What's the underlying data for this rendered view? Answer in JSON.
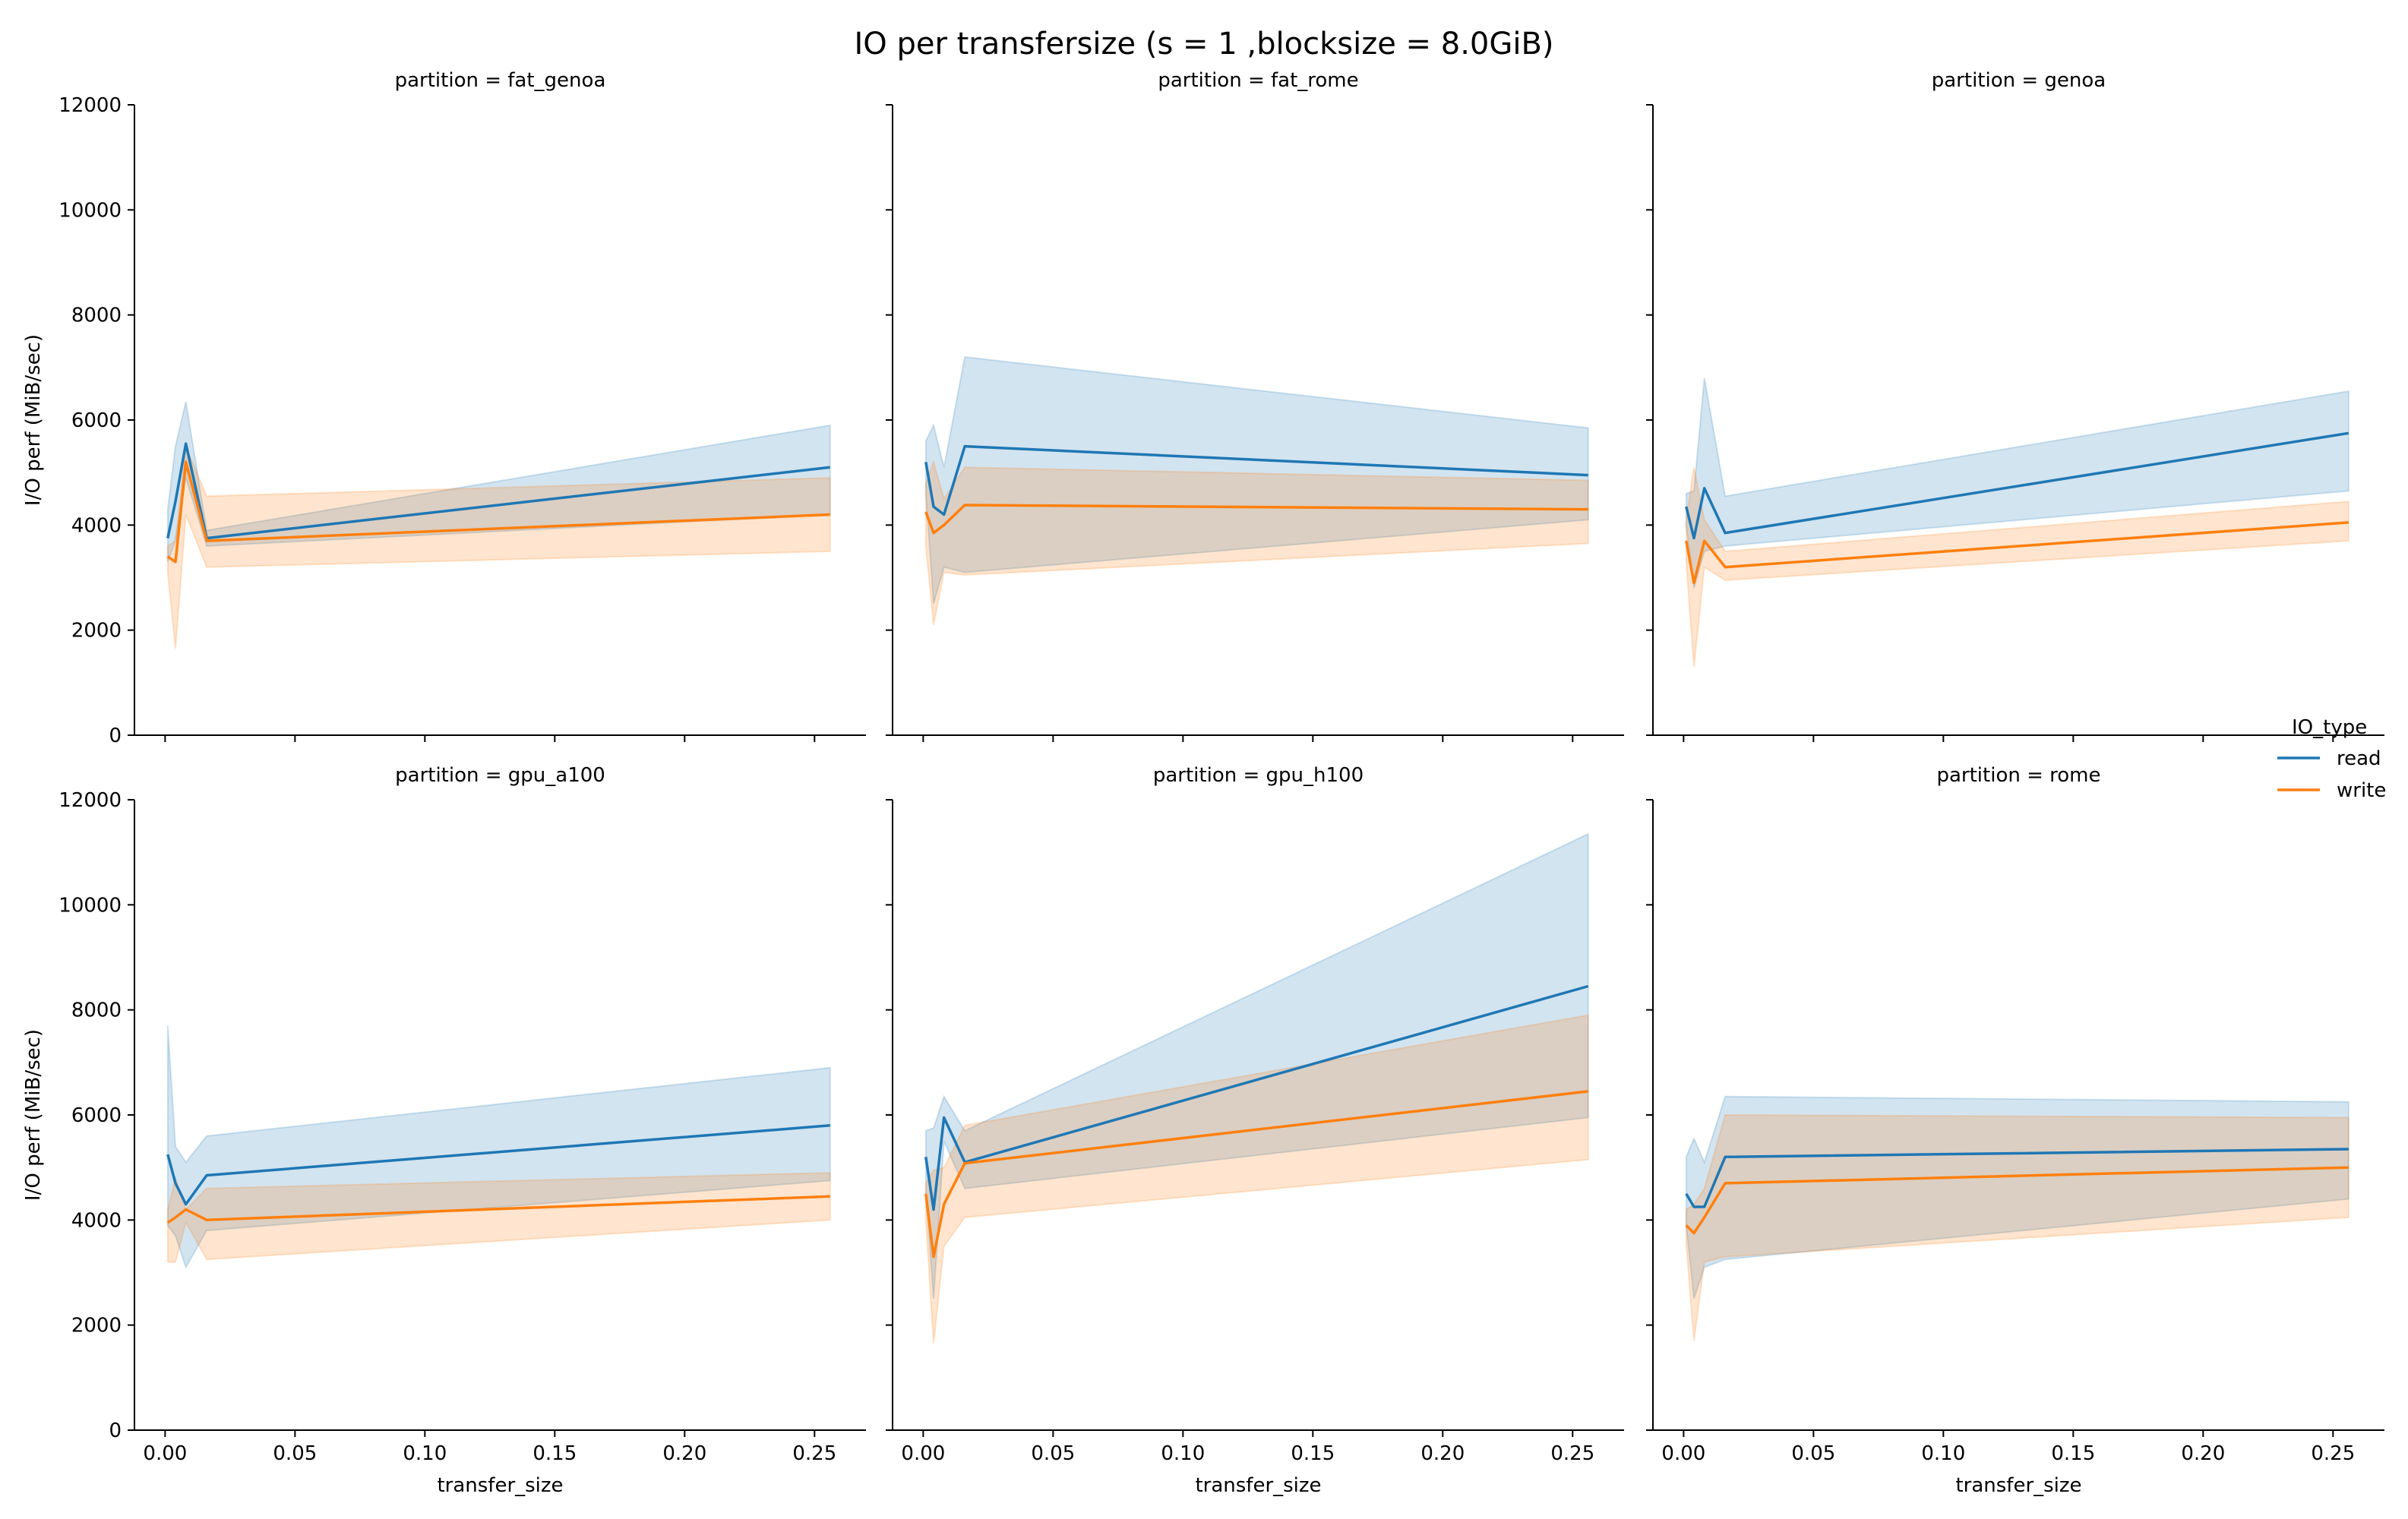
{
  "chart_data": {
    "type": "line",
    "title": "IO per transfersize (s = 1 ,blocksize = 8.0GiB)",
    "xlabel": "transfer_size",
    "ylabel": "I/O perf (MiB/sec)",
    "xlim": [
      -0.0118,
      0.2698
    ],
    "ylim": [
      0,
      12000
    ],
    "x_ticks": [
      0.0,
      0.05,
      0.1,
      0.15,
      0.2,
      0.25
    ],
    "x_tick_labels": [
      "0.00",
      "0.05",
      "0.10",
      "0.15",
      "0.20",
      "0.25"
    ],
    "y_ticks": [
      0,
      2000,
      4000,
      6000,
      8000,
      10000,
      12000
    ],
    "y_tick_labels": [
      "0",
      "2000",
      "4000",
      "6000",
      "8000",
      "10000",
      "12000"
    ],
    "x": [
      0.001,
      0.004,
      0.008,
      0.016,
      0.256
    ],
    "legend": {
      "title": "IO_type",
      "position": "right",
      "entries": [
        {
          "name": "read",
          "color": "#1f77b4"
        },
        {
          "name": "write",
          "color": "#ff7f0e"
        }
      ]
    },
    "panels": [
      {
        "title": "partition = fat_genoa",
        "series": [
          {
            "name": "read",
            "values": [
              3750,
              4450,
              5550,
              3750,
              5100
            ],
            "lower": [
              3300,
              3700,
              4900,
              3600,
              4200
            ],
            "upper": [
              4300,
              5500,
              6350,
              3900,
              5900
            ]
          },
          {
            "name": "write",
            "values": [
              3400,
              3300,
              5200,
              3700,
              4200
            ],
            "lower": [
              3100,
              1650,
              4200,
              3200,
              3500
            ],
            "upper": [
              3600,
              3700,
              5500,
              4550,
              4900
            ]
          }
        ]
      },
      {
        "title": "partition = fat_rome",
        "series": [
          {
            "name": "read",
            "values": [
              5200,
              4350,
              4200,
              5500,
              4950
            ],
            "lower": [
              4600,
              2500,
              3200,
              3100,
              4100
            ],
            "upper": [
              5600,
              5900,
              5100,
              7200,
              5850
            ]
          },
          {
            "name": "write",
            "values": [
              4250,
              3850,
              4000,
              4380,
              4300
            ],
            "lower": [
              3600,
              2100,
              3100,
              3050,
              3650
            ],
            "upper": [
              4800,
              5200,
              4500,
              5100,
              4850
            ]
          }
        ]
      },
      {
        "title": "partition = genoa",
        "series": [
          {
            "name": "read",
            "values": [
              4350,
              3750,
              4700,
              3850,
              5750
            ],
            "lower": [
              4000,
              2800,
              3500,
              3600,
              4650
            ],
            "upper": [
              4600,
              4650,
              6800,
              4550,
              6550
            ]
          },
          {
            "name": "write",
            "values": [
              3700,
              2900,
              3700,
              3200,
              4050
            ],
            "lower": [
              3300,
              1300,
              3200,
              2950,
              3700
            ],
            "upper": [
              4100,
              5100,
              4100,
              3500,
              4450
            ]
          }
        ]
      },
      {
        "title": "partition = gpu_a100",
        "series": [
          {
            "name": "read",
            "values": [
              5250,
              4700,
              4300,
              4850,
              5800
            ],
            "lower": [
              3900,
              3700,
              3100,
              3800,
              4750
            ],
            "upper": [
              7700,
              5400,
              5100,
              5600,
              6900
            ]
          },
          {
            "name": "write",
            "values": [
              3950,
              4050,
              4200,
              4000,
              4450
            ],
            "lower": [
              3200,
              3200,
              3950,
              3250,
              4000
            ],
            "upper": [
              4200,
              4800,
              4200,
              4600,
              4900
            ]
          }
        ]
      },
      {
        "title": "partition = gpu_h100",
        "series": [
          {
            "name": "read",
            "values": [
              5200,
              4200,
              5950,
              5100,
              8450
            ],
            "lower": [
              4500,
              2500,
              5500,
              4600,
              5950
            ],
            "upper": [
              5700,
              5750,
              6350,
              5700,
              11350
            ]
          },
          {
            "name": "write",
            "values": [
              4500,
              3300,
              4300,
              5080,
              6450
            ],
            "lower": [
              4000,
              1650,
              3500,
              4050,
              5150
            ],
            "upper": [
              4700,
              4950,
              5000,
              5800,
              7900
            ]
          }
        ]
      },
      {
        "title": "partition = rome",
        "series": [
          {
            "name": "read",
            "values": [
              4500,
              4250,
              4250,
              5200,
              5350
            ],
            "lower": [
              3900,
              2500,
              3100,
              3250,
              4400
            ],
            "upper": [
              5200,
              5550,
              5100,
              6350,
              6250
            ]
          },
          {
            "name": "write",
            "values": [
              3900,
              3750,
              4050,
              4700,
              5000
            ],
            "lower": [
              3550,
              1700,
              3200,
              3300,
              4050
            ],
            "upper": [
              4200,
              4300,
              4600,
              6000,
              5950
            ]
          }
        ]
      }
    ]
  }
}
